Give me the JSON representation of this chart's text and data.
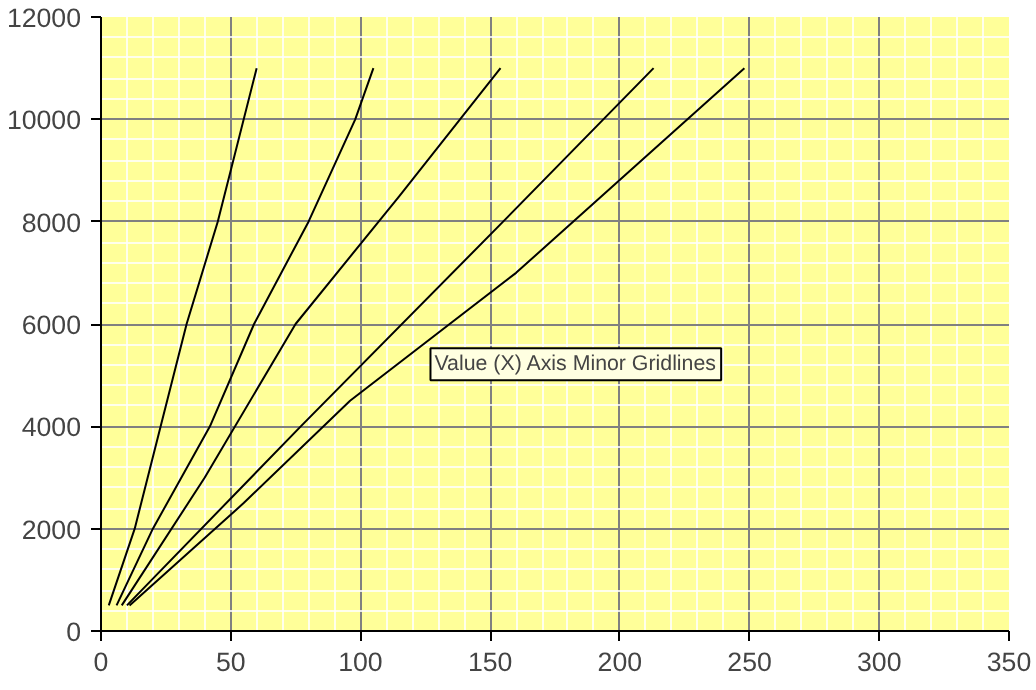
{
  "chart_data": {
    "type": "line",
    "xlim": [
      0,
      350
    ],
    "ylim": [
      0,
      12000
    ],
    "xticks": [
      0,
      50,
      100,
      150,
      200,
      250,
      300,
      350
    ],
    "yticks": [
      0,
      2000,
      4000,
      6000,
      8000,
      10000,
      12000
    ],
    "grid": true,
    "marker": "none",
    "line_style": "solid",
    "annotations": [
      "Value (X) Axis Minor Gridlines"
    ],
    "series": [
      {
        "color": "#000000",
        "x": [
          3,
          13,
          23,
          33,
          45,
          60
        ],
        "values": [
          500,
          2000,
          4000,
          6000,
          8000,
          11000
        ]
      },
      {
        "color": "#000000",
        "x": [
          6,
          20,
          42,
          59,
          80,
          98,
          105
        ],
        "values": [
          500,
          2000,
          4000,
          6000,
          8000,
          10000,
          11000
        ]
      },
      {
        "color": "#000000",
        "x": [
          8,
          40,
          75,
          115,
          154
        ],
        "values": [
          500,
          3000,
          6000,
          8500,
          11000
        ]
      },
      {
        "color": "#000000",
        "x": [
          10,
          77,
          155,
          213
        ],
        "values": [
          500,
          4000,
          8000,
          11000
        ]
      },
      {
        "color": "#000000",
        "x": [
          11,
          55,
          96,
          160,
          248
        ],
        "values": [
          500,
          2500,
          4500,
          7000,
          11000
        ]
      }
    ]
  }
}
